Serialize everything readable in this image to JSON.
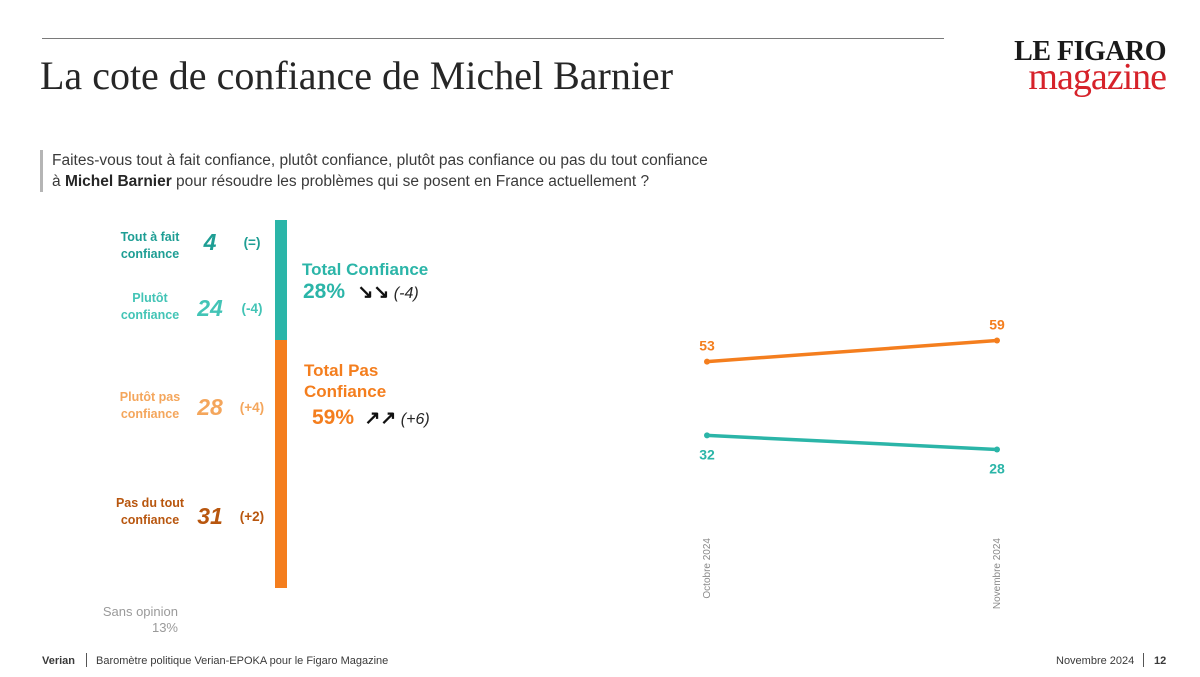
{
  "header": {
    "title": "La cote de confiance de Michel Barnier",
    "logo_line1": "LE FIGARO",
    "logo_line2": "magazine"
  },
  "question": {
    "line1": "Faites-vous tout à fait confiance, plutôt confiance, plutôt pas confiance ou pas du tout confiance",
    "line2_prefix": "à ",
    "line2_name": "Michel Barnier",
    "line2_suffix": " pour résoudre les problèmes qui se posent en France actuellement ?"
  },
  "colors": {
    "teal_dark": "#1e9e94",
    "teal_light": "#43c4b6",
    "orange_light": "#f4a65c",
    "orange": "#f47e1e",
    "orange_dark": "#b8560e"
  },
  "breakdown": [
    {
      "label_l1": "Tout à fait",
      "label_l2": "confiance",
      "value": "4",
      "diff": "(=)"
    },
    {
      "label_l1": "Plutôt",
      "label_l2": "confiance",
      "value": "24",
      "diff": "(-4)"
    },
    {
      "label_l1": "Plutôt pas",
      "label_l2": "confiance",
      "value": "28",
      "diff": "(+4)"
    },
    {
      "label_l1": "Pas du tout",
      "label_l2": "confiance",
      "value": "31",
      "diff": "(+2)"
    }
  ],
  "totals": {
    "confiance": {
      "title": "Total Confiance",
      "value": "28%",
      "arrows": "down-down",
      "diff": "(-4)"
    },
    "pas_confiance": {
      "title_l1": "Total Pas",
      "title_l2": "Confiance",
      "value": "59%",
      "arrows": "up-up",
      "diff": "(+6)"
    }
  },
  "sans_opinion": {
    "label": "Sans opinion",
    "value": "13%"
  },
  "chart_data": {
    "type": "line",
    "x": [
      "Octobre 2024",
      "Novembre 2024"
    ],
    "series": [
      {
        "values": [
          53,
          59
        ],
        "color": "#f47e1e"
      },
      {
        "values": [
          32,
          28
        ],
        "color": "#2bb5a8"
      }
    ]
  },
  "footer": {
    "brand": "Verian",
    "source": "Baromètre politique Verian-EPOKA pour le Figaro Magazine",
    "date": "Novembre 2024",
    "page": "12"
  }
}
